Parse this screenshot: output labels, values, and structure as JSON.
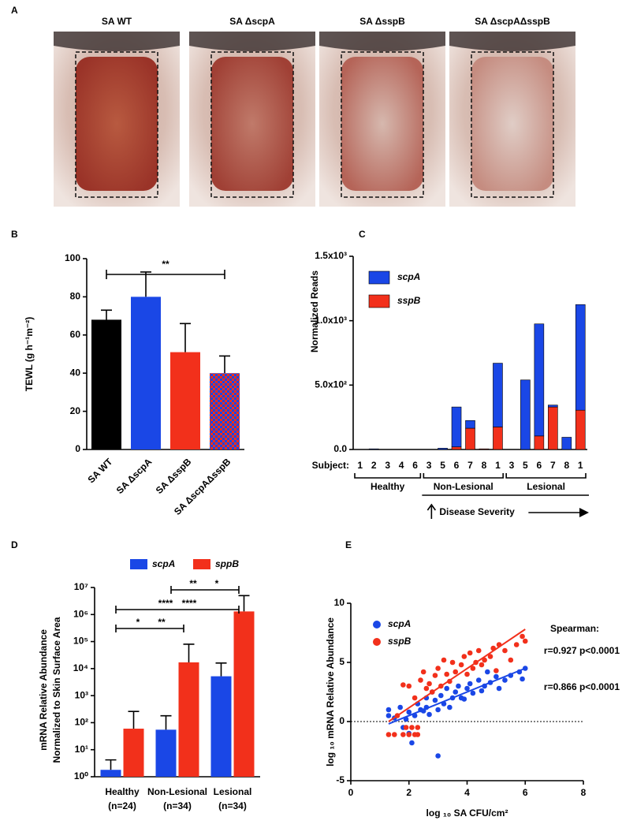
{
  "figure_a": {
    "panel": "A",
    "titles": [
      "SA WT",
      "SA ΔscpA",
      "SA ΔsspB",
      "SA ΔscpAΔsspB"
    ]
  },
  "chart_data": [
    {
      "type": "bar",
      "panel": "B",
      "ylabel": "TEWL (g h⁻¹m⁻²)",
      "categories": [
        "SA WT",
        "SA ΔscpA",
        "SA ΔsspB",
        "SA ΔscpAΔsspB"
      ],
      "values": [
        68,
        80,
        51,
        40
      ],
      "errors": [
        5,
        13,
        15,
        9
      ],
      "colors": [
        "#000000",
        "#1a47e6",
        "#f2301b",
        [
          "#1a47e6",
          "#f2301b"
        ]
      ],
      "ylim": [
        0,
        100
      ],
      "yticks": [
        0,
        20,
        40,
        60,
        80,
        100
      ],
      "annotations": [
        {
          "from": 0,
          "to": 3,
          "label": "**"
        }
      ]
    },
    {
      "type": "stacked-bar",
      "panel": "C",
      "ylabel": "Normalized Reads",
      "xlabel": "Subject:",
      "categories": [
        "1",
        "2",
        "3",
        "4",
        "6",
        "3",
        "5",
        "6",
        "7",
        "8",
        "1",
        "3",
        "5",
        "6",
        "7",
        "8",
        "1"
      ],
      "groups": [
        "Healthy",
        "Non-Lesional",
        "Lesional"
      ],
      "annotation": "Disease Severity",
      "series": [
        {
          "name": "scpA",
          "color": "#1a47e6",
          "values": [
            0,
            5,
            0,
            0,
            0,
            0,
            10,
            310,
            60,
            0,
            495,
            0,
            540,
            870,
            15,
            95,
            820
          ]
        },
        {
          "name": "sspB",
          "color": "#f2301b",
          "values": [
            0,
            0,
            0,
            0,
            0,
            0,
            0,
            20,
            165,
            5,
            175,
            0,
            0,
            105,
            330,
            0,
            305
          ]
        }
      ],
      "stack_order": [
        "sspB",
        "scpA"
      ],
      "ylim": [
        0,
        1500
      ],
      "yticks": [
        {
          "value": 0,
          "label": "0.0"
        },
        {
          "value": 500,
          "label": "5.0x10²"
        },
        {
          "value": 1000,
          "label": "1.0x10³"
        },
        {
          "value": 1500,
          "label": "1.5x10³"
        }
      ]
    },
    {
      "type": "bar",
      "panel": "D",
      "ylabel": [
        "mRNA Relative Abundance",
        "Normalized to Skin Surface Area"
      ],
      "log_scale": true,
      "categories": [
        "Healthy",
        "Non-Lesional",
        "Lesional"
      ],
      "category_notes": [
        "(n=24)",
        "(n=34)",
        "(n=34)"
      ],
      "series": [
        {
          "name": "scpA",
          "color": "#1a47e6",
          "values": [
            1.8,
            55,
            5200
          ],
          "errors": [
            2.4,
            125,
            10800
          ]
        },
        {
          "name": "sppB",
          "color": "#f2301b",
          "values": [
            60,
            17000,
            1300000
          ],
          "errors": [
            200,
            63000,
            3700000
          ]
        }
      ],
      "ylim": [
        1,
        10000000
      ],
      "yticks": [
        {
          "value": 1,
          "label": "10⁰"
        },
        {
          "value": 10,
          "label": "10¹"
        },
        {
          "value": 100,
          "label": "10²"
        },
        {
          "value": 1000,
          "label": "10³"
        },
        {
          "value": 10000,
          "label": "10⁴"
        },
        {
          "value": 100000,
          "label": "10⁵"
        },
        {
          "value": 1000000,
          "label": "10⁶"
        },
        {
          "value": 10000000,
          "label": "10⁷"
        }
      ],
      "annotations": [
        {
          "from": 0,
          "to": 1,
          "labels": [
            {
              "text": "*",
              "color": "#1a47e6"
            },
            {
              "text": "**",
              "color": "#f2301b"
            }
          ]
        },
        {
          "from": 0,
          "to": 2,
          "labels": [
            {
              "text": "****",
              "color": "#1a47e6"
            },
            {
              "text": "****",
              "color": "#f2301b"
            }
          ]
        },
        {
          "from": 1,
          "to": 2,
          "labels": [
            {
              "text": "**",
              "color": "#1a47e6"
            },
            {
              "text": "*",
              "color": "#f2301b"
            }
          ]
        }
      ]
    },
    {
      "type": "scatter",
      "panel": "E",
      "xlabel": "log ₁₀ SA CFU/cm²",
      "ylabel": "log ₁₀ mRNA Relative Abundance",
      "legend_title": "Spearman:",
      "reference_line": 0,
      "xlim": [
        0,
        8
      ],
      "xticks": [
        0,
        2,
        4,
        6,
        8
      ],
      "ylim": [
        -5,
        10
      ],
      "yticks": [
        -5,
        0,
        5,
        10
      ],
      "series": [
        {
          "name": "scpA",
          "color": "#1a47e6",
          "stat_label": "r=0.866 p<0.0001",
          "x": [
            1.3,
            1.3,
            1.5,
            1.7,
            1.8,
            1.9,
            2.0,
            2.0,
            2.1,
            2.2,
            2.3,
            2.4,
            2.5,
            2.6,
            2.6,
            2.7,
            2.8,
            2.9,
            3.0,
            3.0,
            3.1,
            3.2,
            3.3,
            3.4,
            3.5,
            3.6,
            3.7,
            3.8,
            3.9,
            4.0,
            4.1,
            4.2,
            4.4,
            4.5,
            4.6,
            4.7,
            4.8,
            5.0,
            5.1,
            5.3,
            5.5,
            5.8,
            5.9,
            6.0
          ],
          "y": [
            1.0,
            0.5,
            0.3,
            1.2,
            -0.5,
            0.2,
            -1.0,
            0.8,
            -1.8,
            0.5,
            1.5,
            1.0,
            0.9,
            2.0,
            1.2,
            0.6,
            2.5,
            1.8,
            -2.9,
            1.0,
            2.2,
            1.5,
            2.8,
            1.2,
            2.0,
            2.5,
            3.0,
            2.0,
            1.9,
            2.8,
            3.2,
            2.4,
            3.5,
            2.6,
            3.0,
            4.2,
            3.3,
            3.8,
            2.8,
            3.5,
            3.9,
            4.2,
            3.6,
            4.5
          ],
          "fit": {
            "x": [
              1.3,
              6.0
            ],
            "y": [
              -0.2,
              4.5
            ]
          }
        },
        {
          "name": "sspB",
          "color": "#f2301b",
          "stat_label": "r=0.927 p<0.0001",
          "x": [
            1.3,
            1.5,
            1.8,
            2.0,
            2.2,
            2.3,
            1.9,
            2.1,
            2.3,
            1.6,
            1.8,
            2.0,
            2.2,
            2.4,
            2.5,
            2.6,
            2.7,
            2.8,
            2.9,
            3.0,
            3.1,
            3.2,
            3.3,
            3.4,
            3.5,
            3.6,
            3.8,
            3.9,
            4.0,
            4.1,
            4.2,
            4.3,
            4.4,
            4.5,
            4.6,
            4.8,
            4.9,
            5.0,
            5.1,
            5.3,
            5.5,
            5.7,
            5.9,
            6.0
          ],
          "y": [
            -1.1,
            -1.1,
            -1.1,
            -1.1,
            -1.1,
            -1.1,
            -0.5,
            -0.5,
            -0.5,
            0.5,
            3.1,
            3.0,
            2.0,
            3.5,
            4.2,
            2.8,
            3.2,
            2.5,
            3.9,
            4.5,
            3.0,
            5.2,
            4.0,
            3.4,
            5.0,
            4.2,
            4.8,
            5.5,
            4.0,
            5.8,
            4.5,
            5.0,
            6.0,
            4.8,
            5.2,
            5.5,
            6.2,
            4.3,
            6.5,
            6.0,
            5.2,
            6.5,
            7.2,
            6.8
          ],
          "fit": {
            "x": [
              1.3,
              6.0
            ],
            "y": [
              0.0,
              7.8
            ]
          }
        }
      ]
    }
  ]
}
